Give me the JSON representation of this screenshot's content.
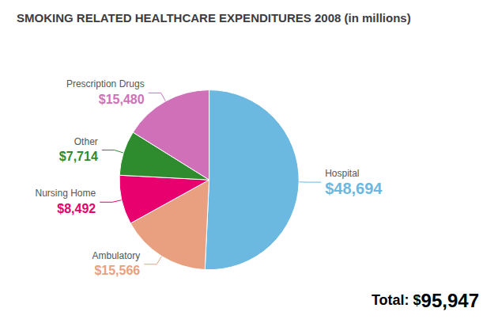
{
  "chart_data": {
    "type": "pie",
    "title": "SMOKING RELATED HEALTHCARE EXPENDITURES 2008 (in millions)",
    "categories": [
      "Hospital",
      "Ambulatory",
      "Nursing Home",
      "Other",
      "Prescription Drugs"
    ],
    "values": [
      48694,
      15566,
      8492,
      7714,
      15480
    ],
    "value_labels": [
      "$48,694",
      "$15,566",
      "$8,492",
      "$7,714",
      "$15,480"
    ],
    "colors": [
      "#6bb8e0",
      "#e8a080",
      "#e8006e",
      "#2e8b2e",
      "#d070b8"
    ],
    "data_labels": true,
    "annotations": [
      "Total: $",
      "95,947"
    ]
  }
}
